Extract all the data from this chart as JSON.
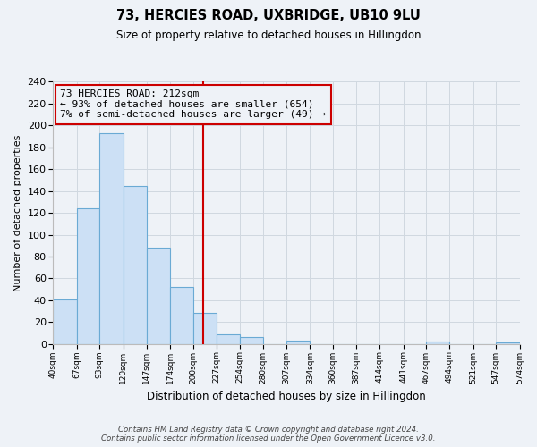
{
  "title": "73, HERCIES ROAD, UXBRIDGE, UB10 9LU",
  "subtitle": "Size of property relative to detached houses in Hillingdon",
  "xlabel": "Distribution of detached houses by size in Hillingdon",
  "ylabel": "Number of detached properties",
  "bin_edges": [
    40,
    67,
    93,
    120,
    147,
    174,
    200,
    227,
    254,
    280,
    307,
    334,
    360,
    387,
    414,
    441,
    467,
    494,
    521,
    547,
    574
  ],
  "counts": [
    41,
    124,
    193,
    145,
    88,
    52,
    28,
    9,
    6,
    0,
    3,
    0,
    0,
    0,
    0,
    0,
    2,
    0,
    0,
    1
  ],
  "bar_facecolor": "#cce0f5",
  "bar_edgecolor": "#6aaad4",
  "property_value": 212,
  "vline_color": "#cc0000",
  "annotation_line1": "73 HERCIES ROAD: 212sqm",
  "annotation_line2": "← 93% of detached houses are smaller (654)",
  "annotation_line3": "7% of semi-detached houses are larger (49) →",
  "annotation_box_edgecolor": "#cc0000",
  "ylim": [
    0,
    240
  ],
  "yticks": [
    0,
    20,
    40,
    60,
    80,
    100,
    120,
    140,
    160,
    180,
    200,
    220,
    240
  ],
  "grid_color": "#d0d8e0",
  "bg_color": "#eef2f7",
  "footer_line1": "Contains HM Land Registry data © Crown copyright and database right 2024.",
  "footer_line2": "Contains public sector information licensed under the Open Government Licence v3.0."
}
